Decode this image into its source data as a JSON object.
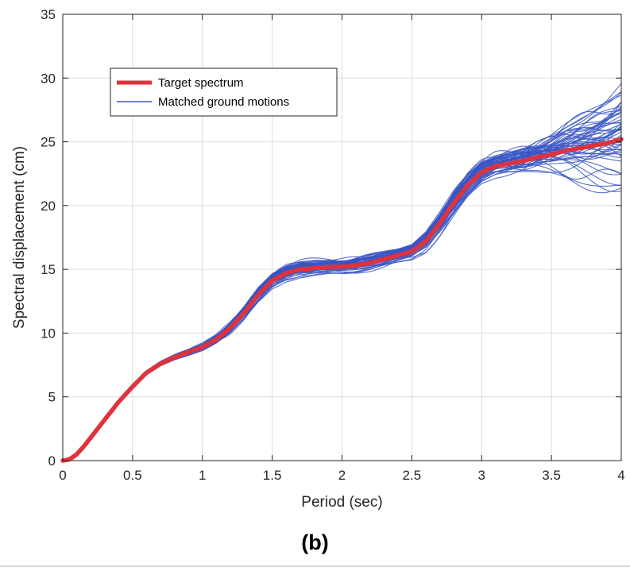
{
  "chart_data": {
    "type": "line",
    "panel_label": "(b)",
    "xlabel": "Period (sec)",
    "ylabel": "Spectral displacement (cm)",
    "xlim": [
      0,
      4
    ],
    "ylim": [
      0,
      35
    ],
    "xticks": [
      "0",
      "0.5",
      "1",
      "1.5",
      "2",
      "2.5",
      "3",
      "3.5",
      "4"
    ],
    "yticks": [
      "0",
      "5",
      "10",
      "15",
      "20",
      "25",
      "30",
      "35"
    ],
    "grid": true,
    "legend_position": "top-left",
    "series": [
      {
        "name": "Target spectrum",
        "color": "#e0323c",
        "x": [
          0,
          0.05,
          0.1,
          0.15,
          0.2,
          0.3,
          0.4,
          0.5,
          0.6,
          0.7,
          0.8,
          0.9,
          1.0,
          1.1,
          1.2,
          1.3,
          1.4,
          1.5,
          1.6,
          1.7,
          1.8,
          1.9,
          2.0,
          2.1,
          2.2,
          2.3,
          2.4,
          2.5,
          2.6,
          2.7,
          2.8,
          2.9,
          3.0,
          3.1,
          3.2,
          3.3,
          3.4,
          3.5,
          3.6,
          3.7,
          3.8,
          3.9,
          4.0
        ],
        "y": [
          0,
          0.1,
          0.5,
          1.1,
          1.8,
          3.2,
          4.6,
          5.8,
          6.9,
          7.6,
          8.1,
          8.5,
          8.9,
          9.5,
          10.4,
          11.6,
          13.0,
          14.1,
          14.7,
          15.0,
          15.1,
          15.2,
          15.2,
          15.3,
          15.5,
          15.8,
          16.1,
          16.4,
          17.2,
          18.6,
          20.2,
          21.6,
          22.6,
          23.1,
          23.3,
          23.5,
          23.8,
          24.0,
          24.3,
          24.5,
          24.7,
          24.9,
          25.2
        ]
      },
      {
        "name": "Matched ground motions",
        "color": "#3a56c4",
        "note_shape": "ensemble of individual records scattered around the target spectrum",
        "spread_x": [
          0,
          0.6,
          1.0,
          1.4,
          1.7,
          2.0,
          2.5,
          2.8,
          3.0,
          3.5,
          4.0
        ],
        "spread_y": [
          0,
          0.2,
          0.4,
          0.8,
          0.8,
          0.8,
          0.8,
          1.3,
          1.2,
          1.5,
          3.0
        ],
        "envelope_max_y_at_4": 31.0,
        "envelope_min_y_at_4": 21.2
      }
    ]
  }
}
